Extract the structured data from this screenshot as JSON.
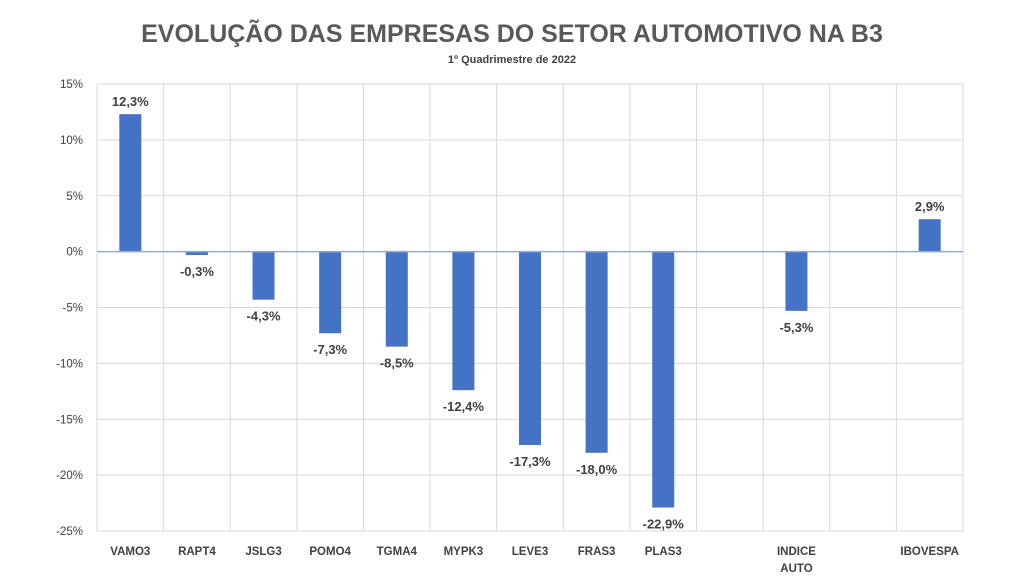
{
  "chart_data": {
    "type": "bar",
    "title": "EVOLUÇÃO DAS EMPRESAS DO SETOR AUTOMOTIVO NA B3",
    "subtitle": "1º Quadrimestre de 2022",
    "xlabel": "",
    "ylabel": "",
    "ylim": [
      -25,
      15
    ],
    "yticks": [
      15,
      10,
      5,
      0,
      -5,
      -10,
      -15,
      -20,
      -25
    ],
    "ytick_labels": [
      "15%",
      "10%",
      "5%",
      "0%",
      "-5%",
      "-10%",
      "-15%",
      "-20%",
      "-25%"
    ],
    "grid": true,
    "legend": "none",
    "categories": [
      [
        "VAMO3"
      ],
      [
        "RAPT4"
      ],
      [
        "JSLG3"
      ],
      [
        "POMO4"
      ],
      [
        "TGMA4"
      ],
      [
        "MYPK3"
      ],
      [
        "LEVE3"
      ],
      [
        "FRAS3"
      ],
      [
        "PLAS3"
      ],
      [
        ""
      ],
      [
        "INDICE",
        "AUTO"
      ],
      [
        ""
      ],
      [
        "IBOVESPA"
      ]
    ],
    "values": [
      12.3,
      -0.3,
      -4.3,
      -7.3,
      -8.5,
      -12.4,
      -17.3,
      -18.0,
      -22.9,
      null,
      -5.3,
      null,
      2.9
    ],
    "data_labels": [
      "12,3%",
      "-0,3%",
      "-4,3%",
      "-7,3%",
      "-8,5%",
      "-12,4%",
      "-17,3%",
      "-18,0%",
      "-22,9%",
      "",
      "-5,3%",
      "",
      "2,9%"
    ],
    "colors": {
      "bar": "#4472C4",
      "grid": "#D9D9D9",
      "zero_line": "#8FAADC",
      "text": "#404040",
      "title": "#595959"
    }
  }
}
